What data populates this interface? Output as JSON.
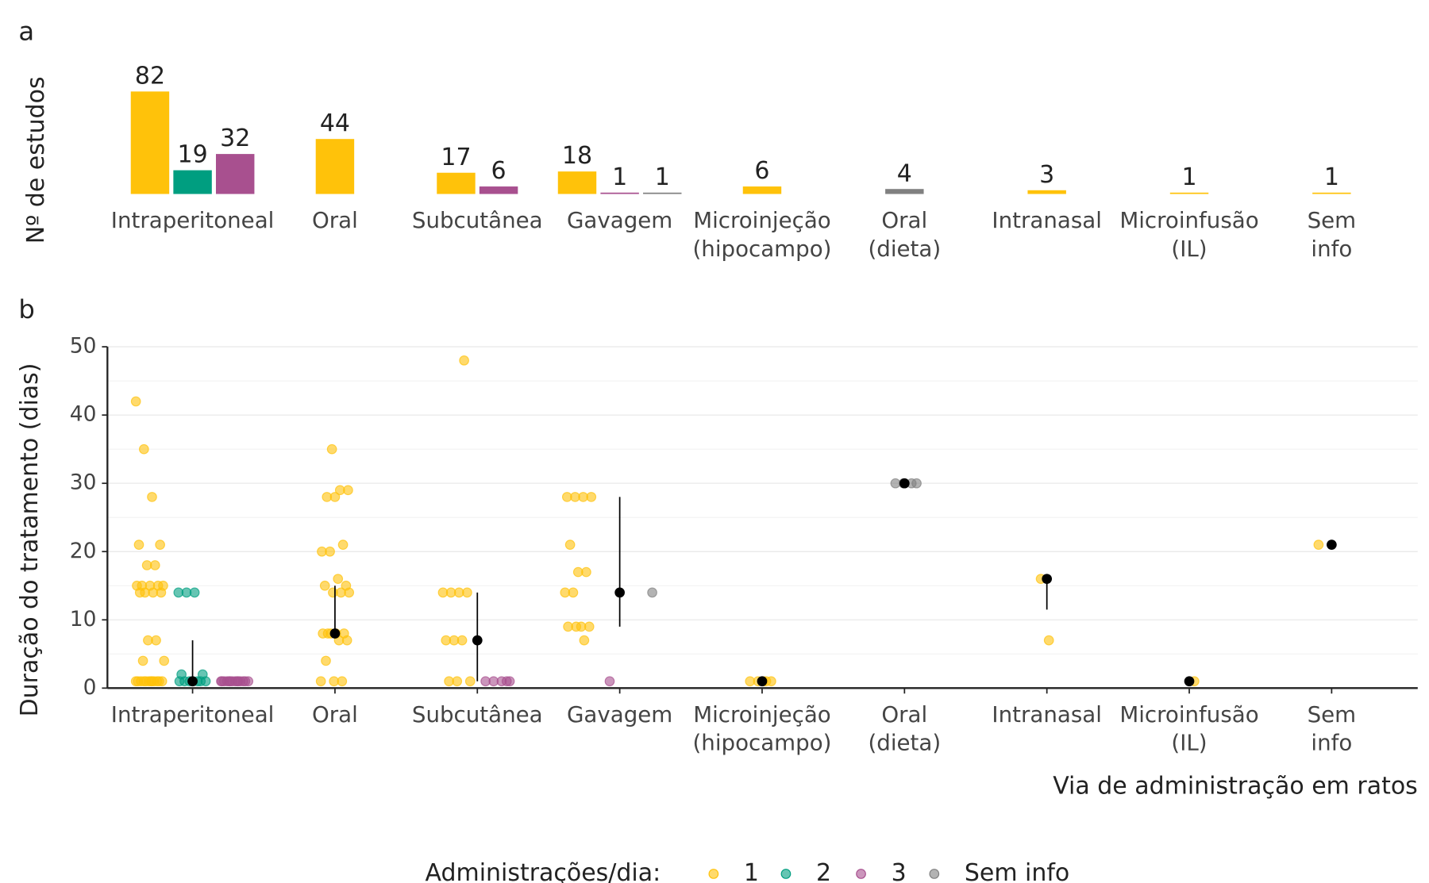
{
  "chart_data": [
    {
      "type": "bar",
      "label": "a",
      "y_label": "Nº de estudos",
      "categories": [
        "Intraperitoneal",
        "Oral",
        "Subcutânea",
        "Gavagem",
        "Microinjeção\n(hipocampo)",
        "Oral\n(dieta)",
        "Intranasal",
        "Microinfusão\n(IL)",
        "Sem\ninfo"
      ],
      "ylim": [
        0,
        82
      ],
      "series": [
        {
          "name": "1",
          "color": "#FFC20A",
          "values": [
            82,
            44,
            17,
            18,
            6,
            null,
            3,
            1,
            1
          ]
        },
        {
          "name": "2",
          "color": "#009E80",
          "values": [
            19,
            null,
            null,
            null,
            null,
            null,
            null,
            null,
            null
          ]
        },
        {
          "name": "3",
          "color": "#A8508F",
          "values": [
            32,
            null,
            6,
            1,
            null,
            null,
            null,
            null,
            null
          ]
        },
        {
          "name": "Sem info",
          "color": "#808080",
          "values": [
            null,
            null,
            null,
            1,
            null,
            4,
            null,
            null,
            null
          ]
        }
      ]
    },
    {
      "type": "strip",
      "label": "b",
      "y_label": "Duração do tratamento (dias)",
      "x_label": "Via de administração em ratos",
      "categories": [
        "Intraperitoneal",
        "Oral",
        "Subcutânea",
        "Gavagem",
        "Microinjeção\n(hipocampo)",
        "Oral\n(dieta)",
        "Intranasal",
        "Microinfusão\n(IL)",
        "Sem\ninfo"
      ],
      "ylim": [
        0,
        50
      ],
      "yticks": [
        0,
        10,
        20,
        30,
        40,
        50
      ],
      "grid": true,
      "series": [
        {
          "name": "1",
          "color": "#FFC20A",
          "values": [
            [
              42,
              35,
              28,
              21,
              21,
              18,
              18,
              15,
              15,
              15,
              15,
              15,
              14,
              14,
              14,
              14,
              7,
              7,
              4,
              4,
              1,
              1,
              1,
              1,
              1,
              1,
              1,
              1,
              1,
              1,
              1,
              1
            ],
            [
              35,
              29,
              29,
              28,
              28,
              21,
              20,
              20,
              16,
              15,
              15,
              14,
              14,
              14,
              8,
              8,
              8,
              8,
              8,
              7,
              7,
              4,
              1,
              1,
              1
            ],
            [
              48,
              14,
              14,
              14,
              14,
              7,
              7,
              7,
              1,
              1,
              1
            ],
            [
              28,
              28,
              28,
              28,
              21,
              17,
              17,
              14,
              14,
              9,
              9,
              9,
              9,
              7
            ],
            [
              1,
              1,
              1,
              1,
              1
            ],
            [],
            [
              16,
              7
            ],
            [
              1
            ],
            [
              21
            ]
          ]
        },
        {
          "name": "2",
          "color": "#009E80",
          "values": [
            [
              14,
              14,
              14,
              2,
              2,
              1,
              1,
              1,
              1,
              1,
              1,
              1
            ],
            [],
            [],
            [],
            [],
            [],
            [],
            [],
            []
          ]
        },
        {
          "name": "3",
          "color": "#A8508F",
          "values": [
            [
              1,
              1,
              1,
              1,
              1,
              1,
              1,
              1,
              1,
              1,
              1,
              1,
              1,
              1
            ],
            [],
            [
              1,
              1,
              1,
              1,
              1
            ],
            [
              1
            ],
            [],
            [],
            [],
            [],
            []
          ]
        },
        {
          "name": "Sem info",
          "color": "#808080",
          "values": [
            [],
            [],
            [],
            [
              14
            ],
            [],
            [
              30,
              30,
              30,
              30
            ],
            [],
            [],
            []
          ]
        }
      ],
      "summary": {
        "median": [
          1,
          8,
          7,
          14,
          1,
          30,
          16,
          1,
          21
        ],
        "low": [
          1,
          8,
          1,
          9,
          1,
          30,
          11.5,
          1,
          21
        ],
        "high": [
          7,
          15,
          14,
          28,
          1,
          30,
          16,
          1,
          21
        ]
      }
    }
  ],
  "legend": {
    "title": "Administrações/dia:",
    "position": "bottom"
  }
}
